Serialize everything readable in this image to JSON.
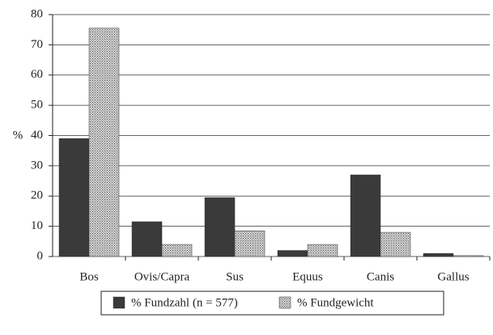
{
  "chart_data": {
    "type": "bar",
    "ylabel": "%",
    "categories": [
      "Bos",
      "Ovis/Capra",
      "Sus",
      "Equus",
      "Canis",
      "Gallus"
    ],
    "series": [
      {
        "name": "% Fundzahl (n = 577)",
        "color": "#3a3a3a",
        "values": [
          39,
          11.5,
          19.5,
          2,
          27,
          1
        ]
      },
      {
        "name": "% Fundgewicht",
        "color": "#d4d4d4",
        "pattern": "dotted",
        "values": [
          75.5,
          4,
          8.5,
          4,
          8,
          0.3
        ]
      }
    ],
    "ylim": [
      0,
      80
    ],
    "yticks": [
      0,
      10,
      20,
      30,
      40,
      50,
      60,
      70,
      80
    ],
    "grid": true
  }
}
